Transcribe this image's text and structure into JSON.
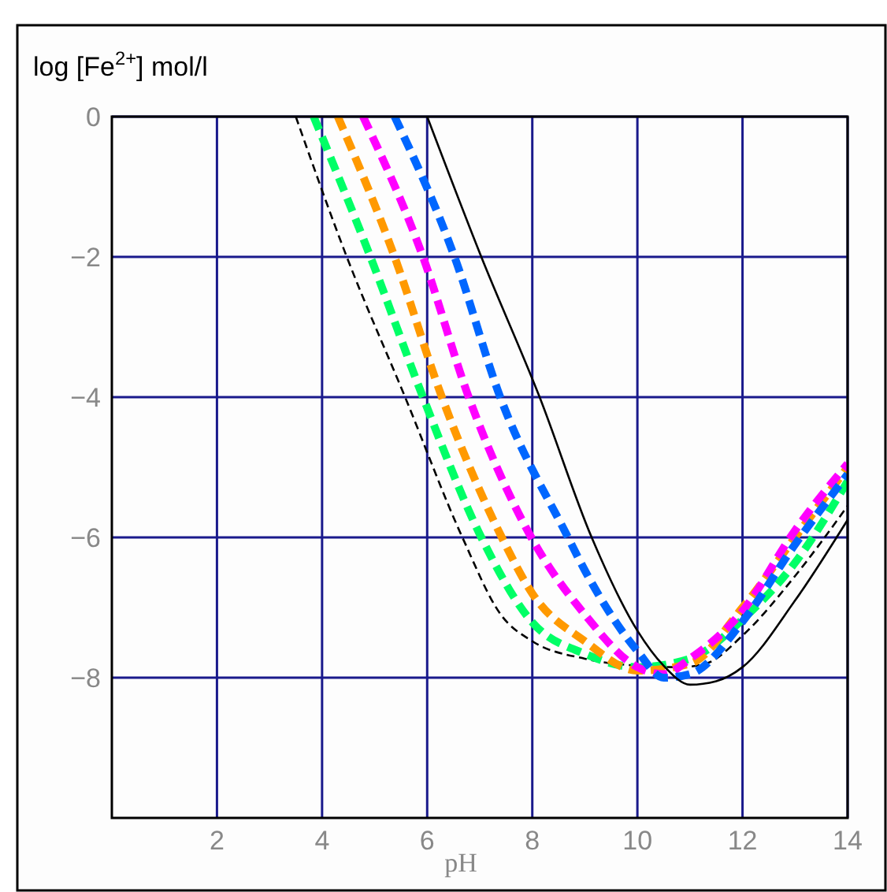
{
  "chart_data": {
    "type": "line",
    "xlabel": "pH",
    "ylabel": "log [Fe$^{2+}$] mol/l",
    "xlim": [
      0,
      14
    ],
    "ylim": [
      -10,
      0
    ],
    "xticks": [
      2,
      4,
      6,
      8,
      10,
      12,
      14
    ],
    "yticks": [
      0,
      -2,
      -4,
      -6,
      -8
    ],
    "grid": true,
    "series": [
      {
        "color": "#000000",
        "line_style": "dashed",
        "x": [
          3.5,
          4.47,
          5.58,
          6.67,
          7.4,
          8,
          9,
          10,
          10.8,
          11.3,
          12,
          13,
          14
        ],
        "values": [
          0,
          -2,
          -4,
          -6,
          -7.1,
          -7.48,
          -7.73,
          -7.83,
          -7.85,
          -7.8,
          -7.4,
          -6.55,
          -5.55
        ]
      },
      {
        "color": "#00ff66",
        "line_style": "dashed",
        "x": [
          3.84,
          4.92,
          5.92,
          7.03,
          8,
          9,
          10,
          11,
          12,
          13,
          14
        ],
        "values": [
          0,
          -2,
          -4,
          -6,
          -7.21,
          -7.66,
          -7.85,
          -7.73,
          -7.17,
          -6.36,
          -5.2
        ]
      },
      {
        "color": "#ff9900",
        "line_style": "dashed",
        "x": [
          4.3,
          5.38,
          6.28,
          7.42,
          8,
          9,
          10,
          11,
          12,
          13,
          14
        ],
        "values": [
          0,
          -2,
          -4,
          -6,
          -6.8,
          -7.48,
          -7.9,
          -7.8,
          -7.0,
          -6.0,
          -5.0
        ]
      },
      {
        "color": "#ff00ff",
        "line_style": "dashed",
        "x": [
          4.78,
          5.92,
          6.79,
          7.98,
          9,
          10,
          10.5,
          11,
          12,
          13,
          14
        ],
        "values": [
          0,
          -2,
          -4,
          -6,
          -7.1,
          -7.85,
          -7.95,
          -7.73,
          -7.05,
          -5.9,
          -4.95
        ]
      },
      {
        "color": "#0066ff",
        "line_style": "dashed",
        "x": [
          5.38,
          6.52,
          7.39,
          8.68,
          9,
          10,
          10.5,
          11,
          12,
          13,
          14
        ],
        "values": [
          0,
          -2,
          -4,
          -6,
          -6.47,
          -7.62,
          -8.0,
          -7.95,
          -7.2,
          -6.1,
          -5.1
        ]
      },
      {
        "color": "#000000",
        "line_style": "solid",
        "x": [
          6.0,
          7.03,
          8.14,
          9.13,
          10,
          10.5,
          11,
          11.5,
          12,
          13,
          14
        ],
        "values": [
          0,
          -2,
          -4,
          -6,
          -7.33,
          -7.83,
          -8.1,
          -8.05,
          -7.85,
          -6.9,
          -5.75
        ]
      }
    ]
  }
}
